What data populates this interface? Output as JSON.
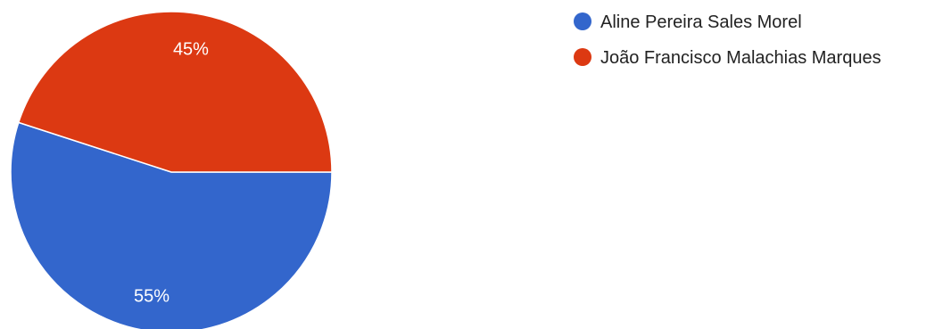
{
  "chart_data": {
    "type": "pie",
    "title": "",
    "slices": [
      {
        "label": "Aline Pereira Sales Morel",
        "value": 55,
        "display": "55%",
        "color": "#3366cc"
      },
      {
        "label": "João Francisco Malachias Marques",
        "value": 45,
        "display": "45%",
        "color": "#dc3912"
      }
    ],
    "legend_position": "right"
  }
}
